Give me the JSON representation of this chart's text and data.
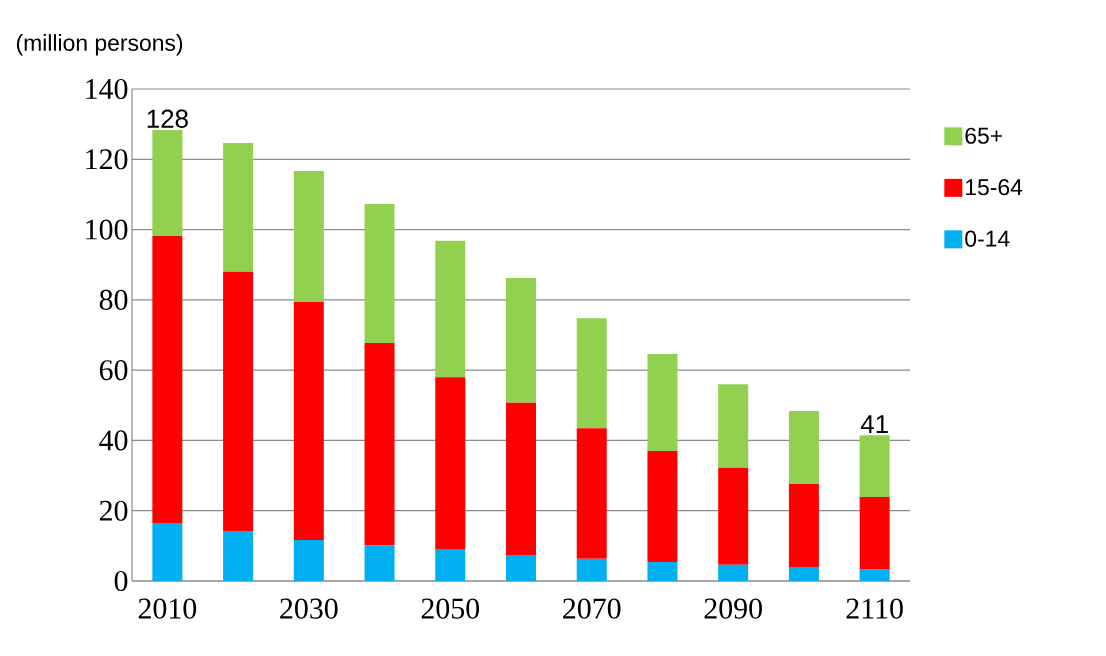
{
  "chart_data": {
    "type": "bar",
    "stacked": true,
    "ylabel": "(million persons)",
    "categories": [
      "2010",
      null,
      "2030",
      null,
      "2050",
      null,
      "2070",
      null,
      "2090",
      null,
      "2110"
    ],
    "series": [
      {
        "name": "0-14",
        "color": "#00b0f0",
        "values": [
          16.5,
          14.2,
          11.7,
          10.2,
          9.1,
          7.4,
          6.3,
          5.4,
          4.6,
          4.0,
          3.4
        ]
      },
      {
        "name": "15-64",
        "color": "#ff0000",
        "values": [
          81.7,
          73.8,
          67.7,
          57.5,
          48.9,
          43.3,
          37.2,
          31.6,
          27.6,
          23.6,
          20.5
        ]
      },
      {
        "name": "65+",
        "color": "#92d050",
        "values": [
          30.1,
          36.6,
          37.3,
          39.6,
          38.8,
          35.5,
          31.3,
          27.6,
          23.8,
          20.8,
          17.6
        ]
      }
    ],
    "totals": [
      "128",
      null,
      null,
      null,
      null,
      null,
      null,
      null,
      null,
      null,
      "41"
    ],
    "ylim": [
      0,
      140
    ],
    "yticks": [
      0,
      20,
      40,
      60,
      80,
      100,
      120,
      140
    ],
    "grid": "y",
    "legend": "right"
  }
}
